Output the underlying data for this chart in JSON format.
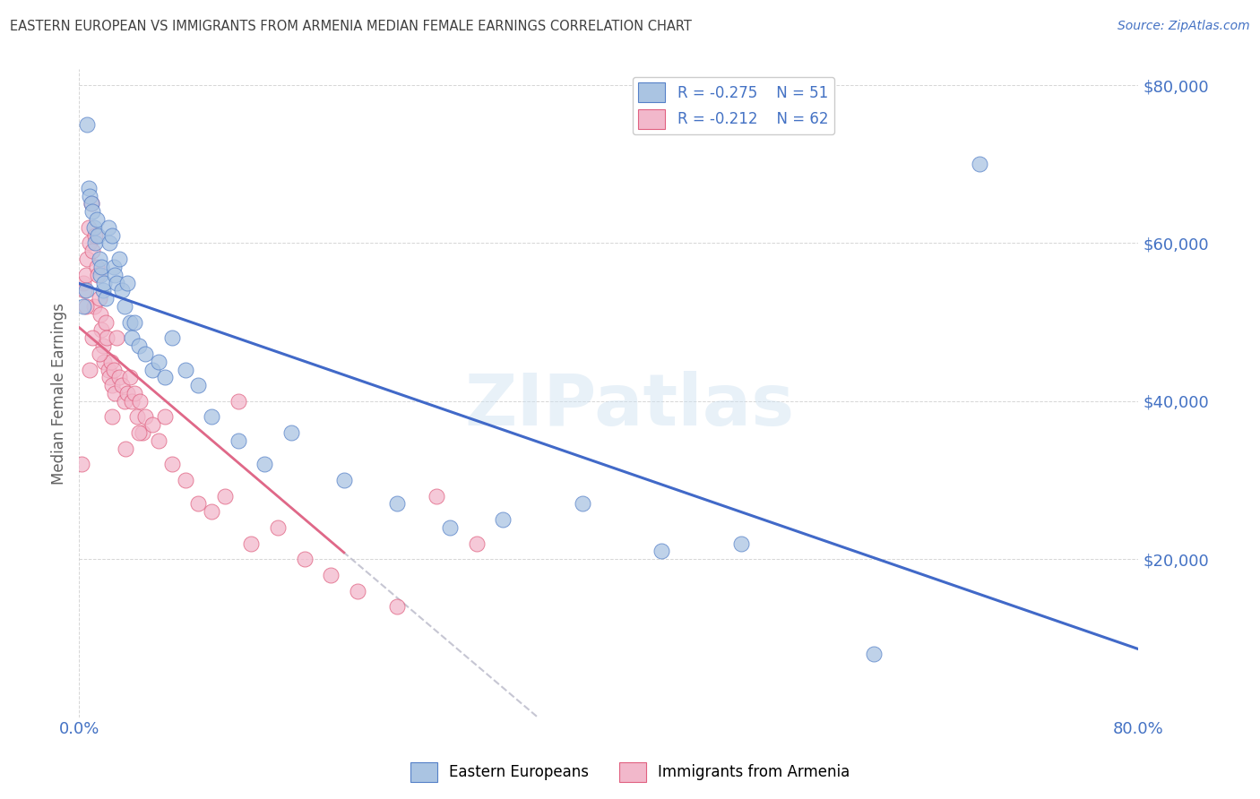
{
  "title": "EASTERN EUROPEAN VS IMMIGRANTS FROM ARMENIA MEDIAN FEMALE EARNINGS CORRELATION CHART",
  "source": "Source: ZipAtlas.com",
  "ylabel": "Median Female Earnings",
  "xlim": [
    0.0,
    0.8
  ],
  "ylim": [
    0,
    82000
  ],
  "ytick_values": [
    20000,
    40000,
    60000,
    80000
  ],
  "ytick_labels": [
    "$20,000",
    "$40,000",
    "$60,000",
    "$80,000"
  ],
  "watermark": "ZIPatlas",
  "r1": "-0.275",
  "n1": "51",
  "r2": "-0.212",
  "n2": "62",
  "blue_fill": "#aac4e2",
  "pink_fill": "#f2b8cb",
  "blue_edge": "#5580c8",
  "pink_edge": "#e06080",
  "blue_line": "#4169c8",
  "pink_line": "#e06888",
  "dashed_line": "#b8b8c8",
  "title_color": "#404040",
  "source_color": "#4472c4",
  "ylabel_color": "#606060",
  "tick_color": "#4472c4",
  "background": "#ffffff",
  "blue_x": [
    0.003,
    0.005,
    0.006,
    0.007,
    0.008,
    0.009,
    0.01,
    0.011,
    0.012,
    0.013,
    0.014,
    0.015,
    0.016,
    0.017,
    0.018,
    0.019,
    0.02,
    0.022,
    0.023,
    0.025,
    0.026,
    0.027,
    0.028,
    0.03,
    0.032,
    0.034,
    0.036,
    0.038,
    0.04,
    0.042,
    0.045,
    0.05,
    0.055,
    0.06,
    0.065,
    0.07,
    0.08,
    0.09,
    0.1,
    0.12,
    0.14,
    0.16,
    0.2,
    0.24,
    0.28,
    0.32,
    0.38,
    0.44,
    0.5,
    0.6,
    0.68
  ],
  "blue_y": [
    52000,
    54000,
    75000,
    67000,
    66000,
    65000,
    64000,
    62000,
    60000,
    63000,
    61000,
    58000,
    56000,
    57000,
    54000,
    55000,
    53000,
    62000,
    60000,
    61000,
    57000,
    56000,
    55000,
    58000,
    54000,
    52000,
    55000,
    50000,
    48000,
    50000,
    47000,
    46000,
    44000,
    45000,
    43000,
    48000,
    44000,
    42000,
    38000,
    35000,
    32000,
    36000,
    30000,
    27000,
    24000,
    25000,
    27000,
    21000,
    22000,
    8000,
    70000
  ],
  "pink_x": [
    0.002,
    0.003,
    0.004,
    0.005,
    0.006,
    0.007,
    0.008,
    0.009,
    0.01,
    0.011,
    0.012,
    0.013,
    0.014,
    0.015,
    0.016,
    0.017,
    0.018,
    0.019,
    0.02,
    0.021,
    0.022,
    0.023,
    0.024,
    0.025,
    0.026,
    0.027,
    0.028,
    0.03,
    0.032,
    0.034,
    0.036,
    0.038,
    0.04,
    0.042,
    0.044,
    0.046,
    0.048,
    0.05,
    0.055,
    0.06,
    0.065,
    0.07,
    0.08,
    0.09,
    0.1,
    0.11,
    0.13,
    0.15,
    0.17,
    0.19,
    0.21,
    0.24,
    0.27,
    0.3,
    0.12,
    0.045,
    0.035,
    0.025,
    0.015,
    0.01,
    0.008,
    0.005
  ],
  "pink_y": [
    32000,
    55000,
    54000,
    56000,
    58000,
    62000,
    60000,
    65000,
    59000,
    52000,
    61000,
    57000,
    56000,
    53000,
    51000,
    49000,
    47000,
    45000,
    50000,
    48000,
    44000,
    43000,
    45000,
    42000,
    44000,
    41000,
    48000,
    43000,
    42000,
    40000,
    41000,
    43000,
    40000,
    41000,
    38000,
    40000,
    36000,
    38000,
    37000,
    35000,
    38000,
    32000,
    30000,
    27000,
    26000,
    28000,
    22000,
    24000,
    20000,
    18000,
    16000,
    14000,
    28000,
    22000,
    40000,
    36000,
    34000,
    38000,
    46000,
    48000,
    44000,
    52000
  ]
}
